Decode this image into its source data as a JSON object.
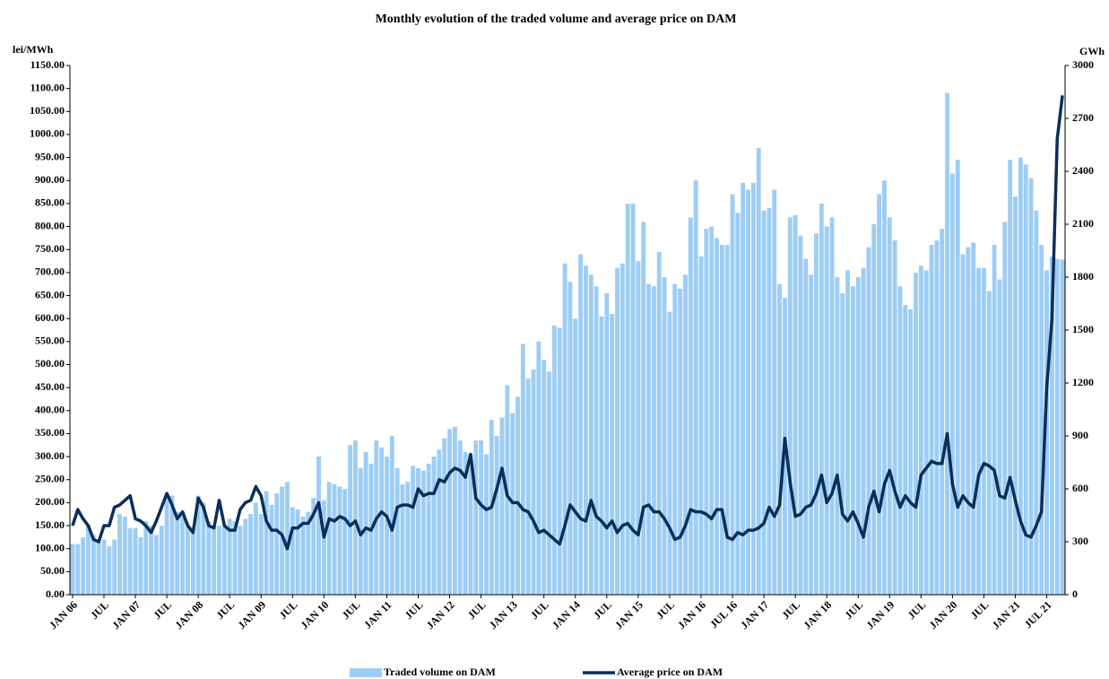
{
  "chart_data": {
    "type": "bar-line",
    "title": "Monthly evolution of the traded volume and average price on DAM",
    "y_label": "lei/MWh",
    "y2_label": "GWh",
    "categories": [
      "JAN 06",
      null,
      null,
      null,
      null,
      null,
      "JUL",
      null,
      null,
      null,
      null,
      null,
      "JAN 07",
      null,
      null,
      null,
      null,
      null,
      "JUL",
      null,
      null,
      null,
      null,
      null,
      "JAN 08",
      null,
      null,
      null,
      null,
      null,
      "JUL",
      null,
      null,
      null,
      null,
      null,
      "JAN 09",
      null,
      null,
      null,
      null,
      null,
      "JUL",
      null,
      null,
      null,
      null,
      null,
      "JAN 10",
      null,
      null,
      null,
      null,
      null,
      "JUL",
      null,
      null,
      null,
      null,
      null,
      "JAN 11",
      null,
      null,
      null,
      null,
      null,
      "JUL",
      null,
      null,
      null,
      null,
      null,
      "JAN 12",
      null,
      null,
      null,
      null,
      null,
      "JUL",
      null,
      null,
      null,
      null,
      null,
      "JAN 13",
      null,
      null,
      null,
      null,
      null,
      "JUL",
      null,
      null,
      null,
      null,
      null,
      "JAN 14",
      null,
      null,
      null,
      null,
      null,
      "JUL",
      null,
      null,
      null,
      null,
      null,
      "JAN 15",
      null,
      null,
      null,
      null,
      null,
      "JUL",
      null,
      null,
      null,
      null,
      null,
      "JAN 16",
      null,
      null,
      null,
      null,
      null,
      "JUL 16",
      null,
      null,
      null,
      null,
      null,
      "JAN 17",
      null,
      null,
      null,
      null,
      null,
      "JUL",
      null,
      null,
      null,
      null,
      null,
      "JAN 18",
      null,
      null,
      null,
      null,
      null,
      "JUL",
      null,
      null,
      null,
      null,
      null,
      "JAN 19",
      null,
      null,
      null,
      null,
      null,
      "JUL",
      null,
      null,
      null,
      null,
      null,
      "JAN 20",
      null,
      null,
      null,
      null,
      null,
      "JUL",
      null,
      null,
      null,
      null,
      null,
      "JAN 21",
      null,
      null,
      null,
      null,
      null,
      "JUL 21",
      null,
      null,
      null
    ],
    "series": [
      {
        "name": "Traded volume on DAM",
        "color": "#9dcdf5",
        "axis": "y2",
        "kind": "bar",
        "values": [
          287,
          287,
          326,
          391,
          339,
          300,
          313,
          274,
          313,
          457,
          443,
          378,
          378,
          326,
          417,
          391,
          339,
          391,
          548,
          561,
          470,
          443,
          391,
          378,
          561,
          522,
          417,
          391,
          391,
          391,
          430,
          417,
          391,
          430,
          457,
          522,
          457,
          587,
          509,
          574,
          613,
          639,
          496,
          483,
          443,
          470,
          548,
          783,
          535,
          639,
          626,
          613,
          600,
          848,
          874,
          717,
          809,
          743,
          874,
          835,
          783,
          900,
          717,
          626,
          639,
          730,
          717,
          704,
          743,
          783,
          822,
          887,
          939,
          952,
          874,
          809,
          796,
          874,
          874,
          796,
          991,
          900,
          1004,
          1187,
          1030,
          1122,
          1422,
          1226,
          1278,
          1435,
          1330,
          1265,
          1526,
          1513,
          1878,
          1774,
          1565,
          1930,
          1865,
          1813,
          1748,
          1578,
          1709,
          1591,
          1852,
          1878,
          2217,
          2217,
          1891,
          2113,
          1761,
          1748,
          1943,
          1800,
          1604,
          1761,
          1735,
          1813,
          2139,
          2348,
          1917,
          2074,
          2087,
          2022,
          1983,
          1983,
          2270,
          2165,
          2335,
          2296,
          2335,
          2531,
          2178,
          2191,
          2296,
          1761,
          1683,
          2139,
          2152,
          2035,
          1904,
          1813,
          2048,
          2217,
          2087,
          2139,
          1800,
          1709,
          1839,
          1748,
          1800,
          1852,
          1970,
          2100,
          2270,
          2348,
          2139,
          2009,
          1748,
          1643,
          1617,
          1826,
          1865,
          1839,
          1983,
          2009,
          2074,
          2844,
          2387,
          2465,
          1930,
          1970,
          1996,
          1852,
          1852,
          1722,
          1983,
          1787,
          2113,
          2465,
          2257,
          2478,
          2439,
          2361,
          2178,
          1983,
          1839,
          1917,
          1904,
          1900
        ]
      },
      {
        "name": "Average price on DAM",
        "color": "#0b2e59",
        "axis": "y",
        "kind": "line",
        "values": [
          150,
          185,
          165,
          150,
          120,
          115,
          150,
          150,
          190,
          195,
          205,
          215,
          165,
          160,
          150,
          135,
          160,
          190,
          220,
          195,
          165,
          180,
          150,
          135,
          210,
          190,
          150,
          145,
          205,
          150,
          140,
          140,
          185,
          200,
          205,
          235,
          215,
          160,
          140,
          140,
          130,
          100,
          145,
          145,
          155,
          155,
          175,
          200,
          125,
          165,
          160,
          170,
          165,
          150,
          160,
          130,
          145,
          140,
          165,
          180,
          170,
          140,
          190,
          195,
          195,
          190,
          230,
          215,
          220,
          220,
          250,
          245,
          265,
          275,
          270,
          255,
          305,
          210,
          195,
          185,
          190,
          230,
          275,
          215,
          200,
          200,
          185,
          180,
          160,
          135,
          140,
          130,
          120,
          110,
          150,
          195,
          180,
          165,
          160,
          205,
          170,
          160,
          145,
          160,
          135,
          150,
          155,
          140,
          130,
          190,
          195,
          180,
          180,
          165,
          145,
          120,
          125,
          150,
          185,
          180,
          180,
          175,
          165,
          185,
          185,
          125,
          120,
          135,
          130,
          140,
          140,
          145,
          155,
          190,
          170,
          195,
          340,
          245,
          170,
          175,
          190,
          195,
          220,
          260,
          200,
          220,
          260,
          175,
          160,
          180,
          155,
          125,
          190,
          225,
          180,
          240,
          270,
          225,
          190,
          215,
          200,
          190,
          260,
          275,
          290,
          285,
          285,
          350,
          240,
          190,
          215,
          200,
          190,
          260,
          285,
          280,
          270,
          215,
          210,
          255,
          205,
          160,
          130,
          125,
          150,
          180,
          450,
          600,
          990,
          1085
        ]
      }
    ],
    "ylim": [
      0,
      1150
    ],
    "yticks": [
      {
        "value": 0,
        "label": "0.00"
      },
      {
        "value": 50,
        "label": "50.00"
      },
      {
        "value": 100,
        "label": "100.00"
      },
      {
        "value": 150,
        "label": "150.00"
      },
      {
        "value": 200,
        "label": "200.00"
      },
      {
        "value": 250,
        "label": "250.00"
      },
      {
        "value": 300,
        "label": "300.00"
      },
      {
        "value": 350,
        "label": "350.00"
      },
      {
        "value": 400,
        "label": "400.00"
      },
      {
        "value": 450,
        "label": "450.00"
      },
      {
        "value": 500,
        "label": "500.00"
      },
      {
        "value": 550,
        "label": "550.00"
      },
      {
        "value": 600,
        "label": "600.00"
      },
      {
        "value": 650,
        "label": "650.00"
      },
      {
        "value": 700,
        "label": "700.00"
      },
      {
        "value": 750,
        "label": "750.00"
      },
      {
        "value": 800,
        "label": "800.00"
      },
      {
        "value": 850,
        "label": "850.00"
      },
      {
        "value": 900,
        "label": "900.00"
      },
      {
        "value": 950,
        "label": "950.00"
      },
      {
        "value": 1000,
        "label": "1000.00"
      },
      {
        "value": 1050,
        "label": "1050.00"
      },
      {
        "value": 1100,
        "label": "1100.00"
      },
      {
        "value": 1150,
        "label": "1150.00"
      }
    ],
    "y2lim": [
      0,
      3000
    ],
    "y2ticks": [
      0,
      300,
      600,
      900,
      1200,
      1500,
      1800,
      2100,
      2400,
      2700,
      3000
    ],
    "legend": "bottom"
  }
}
